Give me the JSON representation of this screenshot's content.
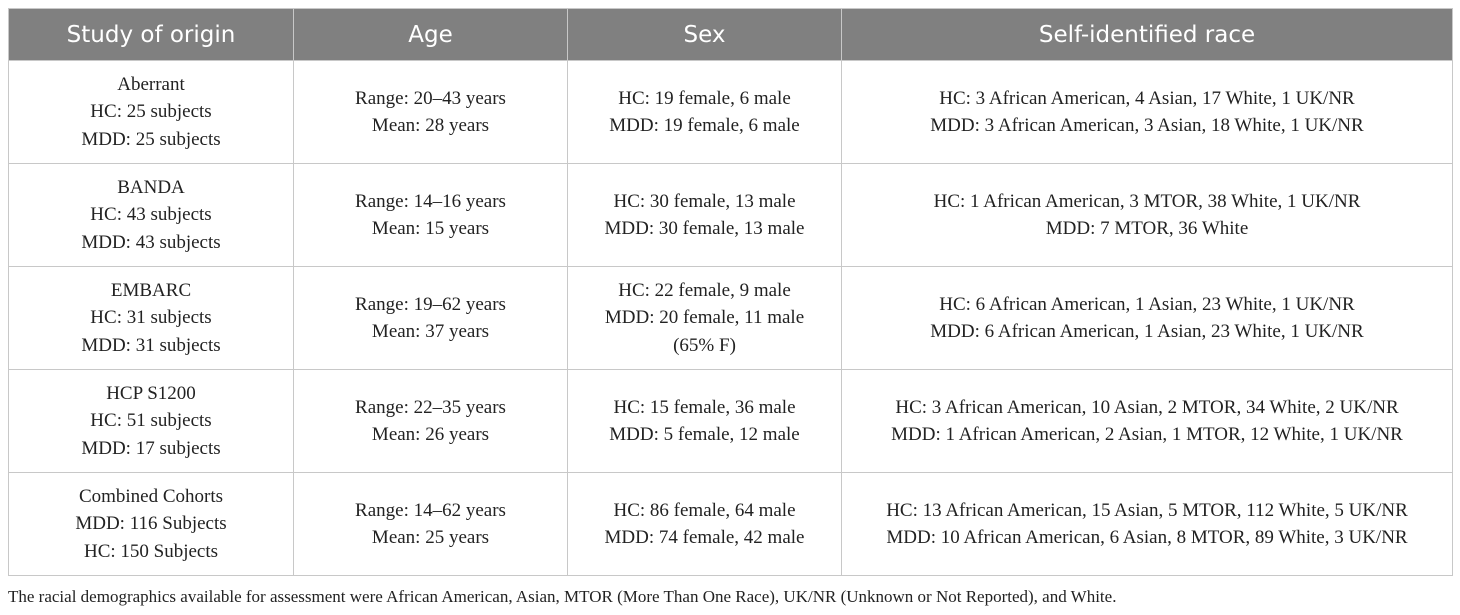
{
  "table": {
    "header": [
      "Study of origin",
      "Age",
      "Sex",
      "Self-identified race"
    ],
    "rows": [
      [
        [
          "Aberrant",
          "HC: 25 subjects",
          "MDD: 25 subjects"
        ],
        [
          "Range: 20–43 years",
          "Mean: 28 years"
        ],
        [
          "HC: 19 female, 6 male",
          "MDD: 19 female, 6 male"
        ],
        [
          "HC: 3 African American, 4 Asian, 17 White, 1 UK/NR",
          "MDD: 3 African American, 3 Asian, 18 White, 1 UK/NR"
        ]
      ],
      [
        [
          "BANDA",
          "HC: 43 subjects",
          "MDD: 43 subjects"
        ],
        [
          "Range: 14–16 years",
          "Mean: 15 years"
        ],
        [
          "HC: 30 female, 13 male",
          "MDD: 30 female, 13 male"
        ],
        [
          "HC: 1 African American, 3 MTOR, 38 White, 1 UK/NR",
          "MDD: 7 MTOR, 36 White"
        ]
      ],
      [
        [
          "EMBARC",
          "HC: 31 subjects",
          "MDD: 31 subjects"
        ],
        [
          "Range: 19–62 years",
          "Mean: 37 years"
        ],
        [
          "HC: 22 female, 9 male",
          "MDD: 20 female, 11 male",
          "(65% F)"
        ],
        [
          "HC: 6 African American, 1 Asian, 23 White, 1 UK/NR",
          "MDD: 6 African American, 1 Asian, 23 White, 1 UK/NR"
        ]
      ],
      [
        [
          "HCP S1200",
          "HC: 51 subjects",
          "MDD: 17 subjects"
        ],
        [
          "Range: 22–35 years",
          "Mean: 26 years"
        ],
        [
          "HC: 15 female, 36 male",
          "MDD: 5 female, 12 male"
        ],
        [
          "HC: 3 African American, 10 Asian, 2 MTOR, 34 White, 2 UK/NR",
          "MDD: 1 African American, 2 Asian, 1 MTOR, 12 White, 1 UK/NR"
        ]
      ],
      [
        [
          "Combined Cohorts",
          "MDD: 116 Subjects",
          "HC: 150 Subjects"
        ],
        [
          "Range: 14–62 years",
          "Mean: 25 years"
        ],
        [
          "HC: 86 female, 64 male",
          "MDD: 74 female, 42 male"
        ],
        [
          "HC: 13 African American, 15 Asian, 5 MTOR, 112 White, 5 UK/NR",
          "MDD: 10 African American, 6 Asian, 8 MTOR, 89 White, 3 UK/NR"
        ]
      ]
    ],
    "note": "The racial demographics available for assessment were African American, Asian, MTOR (More Than One Race), UK/NR (Unknown or Not Reported), and White."
  }
}
